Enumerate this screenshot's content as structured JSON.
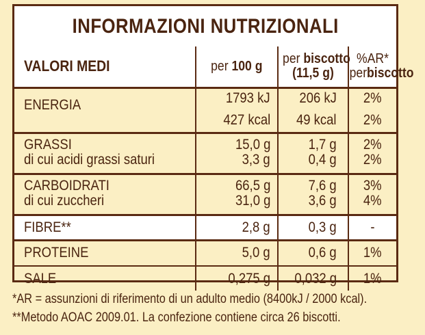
{
  "title": "INFORMAZIONI NUTRIZIONALI",
  "header": {
    "col1": "VALORI MEDI",
    "col2_prefix": "per",
    "col2_bold": "100 g",
    "col3_prefix": "per",
    "col3_bold": "biscotto",
    "col3_sub": "(11,5 g)",
    "col4_top": "%AR*",
    "col4_prefix": "per",
    "col4_bold": "biscotto"
  },
  "rows": [
    {
      "label": "ENERGIA",
      "per100": "1793 kJ",
      "perBisc": "206 kJ",
      "ar": "2%"
    },
    {
      "label": "",
      "per100": "427 kcal",
      "perBisc": "49 kcal",
      "ar": "2%"
    },
    {
      "label": "GRASSI",
      "per100": "15,0 g",
      "perBisc": "1,7 g",
      "ar": "2%"
    },
    {
      "label": "di cui acidi grassi saturi",
      "per100": "3,3 g",
      "perBisc": "0,4 g",
      "ar": "2%"
    },
    {
      "label": "CARBOIDRATI",
      "per100": "66,5 g",
      "perBisc": "7,6 g",
      "ar": "3%"
    },
    {
      "label": "di cui zuccheri",
      "per100": "31,0 g",
      "perBisc": "3,6 g",
      "ar": "4%"
    },
    {
      "label": "FIBRE**",
      "per100": "2,8 g",
      "perBisc": "0,3 g",
      "ar": "-"
    },
    {
      "label": "PROTEINE",
      "per100": "5,0 g",
      "perBisc": "0,6 g",
      "ar": "1%"
    },
    {
      "label": "SALE",
      "per100": "0,275 g",
      "perBisc": "0,032 g",
      "ar": "1%"
    }
  ],
  "footnotes": [
    "*AR = assunzioni di riferimento di un adulto medio (8400kJ / 2000 kcal).",
    "**Metodo AOAC 2009.01. La confezione contiene circa 26 biscotti."
  ],
  "colors": {
    "text": "#4a2410",
    "border": "#5a2a12",
    "background": "#fbefc4",
    "highlight": "#ffffff"
  }
}
